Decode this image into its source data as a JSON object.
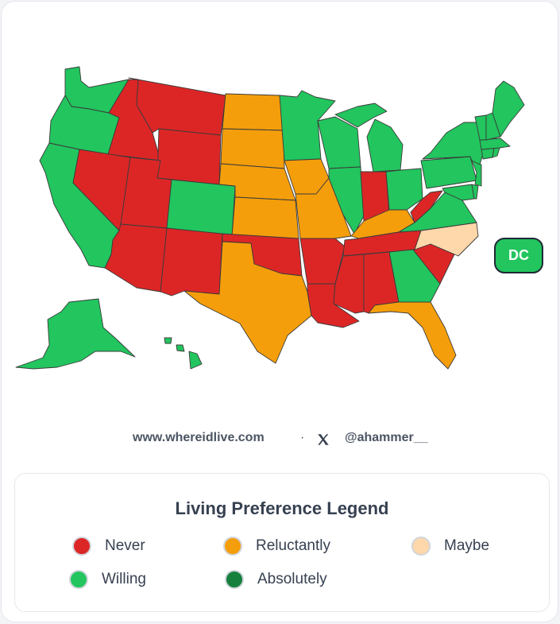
{
  "colors": {
    "never": "#dc2626",
    "reluctantly": "#f59e0b",
    "maybe": "#fed7aa",
    "willing": "#22c55e",
    "absolutely": "#15803d"
  },
  "states": {
    "WA": "willing",
    "OR": "willing",
    "CA": "willing",
    "ID": "never",
    "NV": "never",
    "MT": "never",
    "WY": "never",
    "UT": "never",
    "AZ": "never",
    "CO": "willing",
    "NM": "never",
    "ND": "reluctantly",
    "SD": "reluctantly",
    "NE": "reluctantly",
    "KS": "reluctantly",
    "OK": "never",
    "TX": "reluctantly",
    "MN": "willing",
    "IA": "reluctantly",
    "MO": "reluctantly",
    "AR": "never",
    "LA": "never",
    "WI": "willing",
    "IL": "willing",
    "MI": "willing",
    "IN": "never",
    "OH": "willing",
    "KY": "reluctantly",
    "TN": "never",
    "MS": "never",
    "AL": "never",
    "GA": "willing",
    "FL": "reluctantly",
    "SC": "never",
    "NC": "maybe",
    "VA": "willing",
    "WV": "never",
    "PA": "willing",
    "NY": "willing",
    "VT": "willing",
    "NH": "willing",
    "ME": "willing",
    "MA": "willing",
    "RI": "willing",
    "CT": "willing",
    "NJ": "willing",
    "DE": "willing",
    "MD": "willing",
    "AK": "willing",
    "HI": "willing",
    "DC": "willing"
  },
  "dc_badge": {
    "label": "DC",
    "status": "willing"
  },
  "credits": {
    "website": "www.whereidlive.com",
    "separator": "·",
    "handle": "@ahammer__"
  },
  "legend": {
    "title": "Living Preference Legend",
    "items": [
      {
        "label": "Never",
        "status": "never"
      },
      {
        "label": "Reluctantly",
        "status": "reluctantly"
      },
      {
        "label": "Maybe",
        "status": "maybe"
      },
      {
        "label": "Willing",
        "status": "willing"
      },
      {
        "label": "Absolutely",
        "status": "absolutely"
      }
    ]
  }
}
